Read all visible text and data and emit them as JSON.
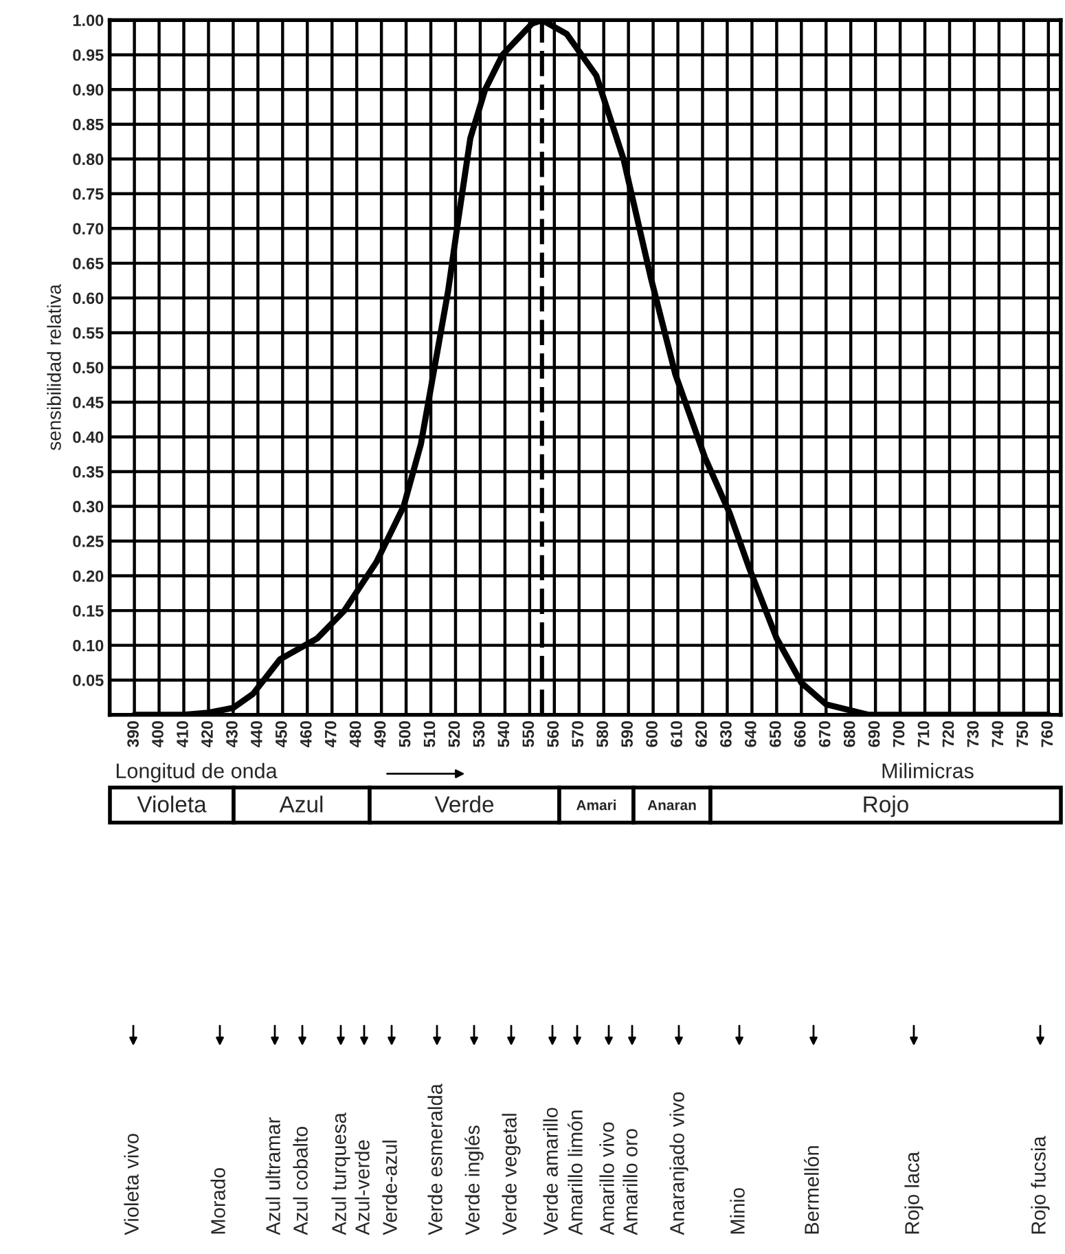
{
  "chart_data": {
    "type": "line",
    "xlabel": "Longitud de onda",
    "ylabel": "sensibilidad relativa",
    "x": [
      390,
      410,
      420,
      430,
      438,
      449,
      464,
      475,
      488,
      499,
      506,
      511,
      517,
      521,
      526,
      532,
      539,
      551,
      555,
      565,
      577,
      588,
      599,
      609,
      621,
      631,
      639,
      650,
      660,
      670,
      687,
      760
    ],
    "series": [
      {
        "color": "#000000",
        "values": [
          0,
          0,
          0.003,
          0.01,
          0.03,
          0.08,
          0.11,
          0.15,
          0.22,
          0.3,
          0.39,
          0.49,
          0.61,
          0.71,
          0.83,
          0.9,
          0.95,
          0.995,
          1.0,
          0.98,
          0.92,
          0.8,
          0.63,
          0.49,
          0.37,
          0.29,
          0.21,
          0.11,
          0.046,
          0.015,
          0,
          0
        ]
      }
    ],
    "xlim": [
      380,
      765
    ],
    "xticks": [
      390,
      400,
      410,
      420,
      430,
      440,
      450,
      460,
      470,
      480,
      490,
      500,
      510,
      520,
      530,
      540,
      550,
      560,
      570,
      580,
      590,
      600,
      610,
      620,
      630,
      640,
      650,
      660,
      670,
      680,
      690,
      700,
      710,
      720,
      730,
      740,
      750,
      760
    ],
    "ylim": [
      0,
      1.0
    ],
    "yticks": [
      {
        "value": 0.05,
        "label": "0.05"
      },
      {
        "value": 0.1,
        "label": "0.10"
      },
      {
        "value": 0.15,
        "label": "0.15"
      },
      {
        "value": 0.2,
        "label": "0.20"
      },
      {
        "value": 0.25,
        "label": "0.25"
      },
      {
        "value": 0.3,
        "label": "0.30"
      },
      {
        "value": 0.35,
        "label": "0.35"
      },
      {
        "value": 0.4,
        "label": "0.40"
      },
      {
        "value": 0.45,
        "label": "0.45"
      },
      {
        "value": 0.5,
        "label": "0.50"
      },
      {
        "value": 0.55,
        "label": "0.55"
      },
      {
        "value": 0.6,
        "label": "0.60"
      },
      {
        "value": 0.65,
        "label": "0.65"
      },
      {
        "value": 0.7,
        "label": "0.70"
      },
      {
        "value": 0.75,
        "label": "0.75"
      },
      {
        "value": 0.8,
        "label": "0.80"
      },
      {
        "value": 0.85,
        "label": "0.85"
      },
      {
        "value": 0.9,
        "label": "0.90"
      },
      {
        "value": 0.95,
        "label": "0.95"
      },
      {
        "value": 1.0,
        "label": "1.00"
      }
    ],
    "grid": true,
    "ref_lines": [
      {
        "axis": "x",
        "value": 555,
        "line_style": "dashed"
      }
    ],
    "annotations": [
      "Milimicras",
      "Violeta",
      "Azul",
      "Verde",
      "Amari",
      "Anaran",
      "Rojo",
      "Violeta vivo",
      "Morado",
      "Azul ultramar",
      "Azul cobalto",
      "Azul turquesa",
      "Azul-verde",
      "Verde-azul",
      "Verde esmeralda",
      "Verde inglés",
      "Verde vegetal",
      "Verde amarillo",
      "Amarillo limón",
      "Amarillo vivo",
      "Amarillo oro",
      "Anaranjado vivo",
      "Minio",
      "Bermellón",
      "Rojo laca",
      "Rojo fucsia"
    ]
  }
}
